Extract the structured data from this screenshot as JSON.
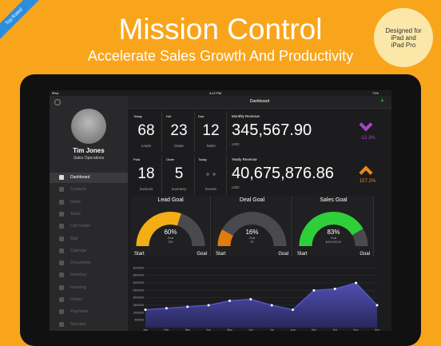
{
  "banner": {
    "badge": "Top Rated",
    "title": "Mission Control",
    "subtitle": "Accelerate Sales Growth And Productivity",
    "sticker": "Designed for iPad and iPad Pro"
  },
  "status": {
    "device": "iPad",
    "time": "4:12 PM",
    "battery": "71%"
  },
  "header": {
    "title": "Dashboard"
  },
  "profile": {
    "name": "Tim Jones",
    "role": "Sales Operations"
  },
  "menu": [
    "Dashboard",
    "Contacts",
    "Deals",
    "Tasks",
    "Call Center",
    "Mail",
    "Calendar",
    "Documents",
    "Inventory",
    "Invoicing",
    "Orders",
    "Payments",
    "Receipts"
  ],
  "tiles": [
    {
      "label": "Today",
      "value": "68",
      "caption": "Leads"
    },
    {
      "label": "Hot",
      "value": "23",
      "caption": "Deals"
    },
    {
      "label": "Due",
      "value": "12",
      "caption": "Tasks"
    },
    {
      "label": "Paid",
      "value": "18",
      "caption": "Invoices"
    },
    {
      "label": "Order",
      "value": "5",
      "caption": "Inventory"
    },
    {
      "label": "Today",
      "caption": "Events"
    }
  ],
  "revenue": [
    {
      "label": "Monthly Revenue",
      "value": "345,567.90",
      "currency": "USD",
      "change": "-12.3%"
    },
    {
      "label": "Yearly Revenue",
      "value": "40,675,876.86",
      "currency": "USD",
      "change": "157.2%"
    }
  ],
  "gauges": [
    {
      "title": "Lead Goal",
      "value": 60,
      "value_label": "60%",
      "goal_label": "Goal",
      "goal": "250",
      "start": "Start",
      "end": "Goal"
    },
    {
      "title": "Deal Goal",
      "value": 16,
      "value_label": "16%",
      "goal_label": "Goal",
      "goal": "50",
      "start": "Start",
      "end": "Goal"
    },
    {
      "title": "Sales Goal",
      "value": 83,
      "value_label": "83%",
      "goal_label": "Goal",
      "goal": "$400,000.00",
      "start": "Start",
      "end": "Goal"
    }
  ],
  "chart_data": {
    "type": "line",
    "categories": [
      "Jan",
      "Feb",
      "Mar",
      "Apr",
      "May",
      "Jun",
      "Jul",
      "Aug",
      "Sep",
      "Oct",
      "Nov",
      "Dec"
    ],
    "values": [
      1200000,
      1300000,
      1400000,
      1500000,
      1800000,
      1900000,
      1500000,
      1200000,
      2500000,
      2600000,
      3000000,
      1500000
    ],
    "color": "#5b5bd6",
    "ylim": [
      0,
      4500000
    ],
    "yticks": [
      500000,
      1000000,
      1500000,
      2000000,
      2500000,
      3000000,
      3500000,
      4000000
    ],
    "grid": true
  }
}
